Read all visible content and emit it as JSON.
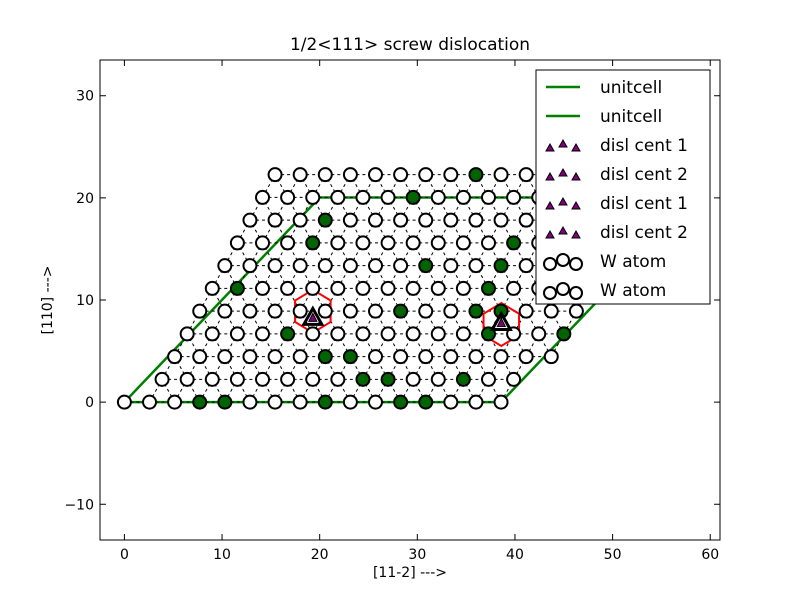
{
  "chart_data": {
    "type": "scatter",
    "title": "1/2<111> screw dislocation",
    "xlabel": "[11-2] --->",
    "ylabel": "[110] --->",
    "xlim": [
      -2.5,
      61
    ],
    "ylim": [
      -13.5,
      33.5
    ],
    "xticks": [
      0,
      10,
      20,
      30,
      40,
      50,
      60
    ],
    "yticks": [
      -10,
      0,
      10,
      20,
      30
    ],
    "grid": false,
    "legend_position": "top-right",
    "colors": {
      "unitcell": "#008000",
      "atom_edge": "#000000",
      "atom_filled": "#006400",
      "atom_open": "#ffffff",
      "disl_marker": "#800080",
      "core_ring": "#ff0000",
      "core_triangle": "#000000"
    },
    "lattice": {
      "a": 2.5717,
      "dy": 2.2272,
      "rows": [
        {
          "y_index": 0,
          "x_start_index": 0,
          "count": 16
        },
        {
          "y_index": 1,
          "x_start_index": 1.5,
          "count": 15
        },
        {
          "y_index": 2,
          "x_start_index": 2,
          "count": 16
        },
        {
          "y_index": 3,
          "x_start_index": 2.5,
          "count": 16
        },
        {
          "y_index": 4,
          "x_start_index": 3,
          "count": 16
        },
        {
          "y_index": 5,
          "x_start_index": 3.5,
          "count": 17
        },
        {
          "y_index": 6,
          "x_start_index": 4,
          "count": 17
        },
        {
          "y_index": 7,
          "x_start_index": 4.5,
          "count": 17
        },
        {
          "y_index": 8,
          "x_start_index": 5,
          "count": 17
        },
        {
          "y_index": 9,
          "x_start_index": 5.5,
          "count": 17
        },
        {
          "y_index": 10,
          "x_start_index": 6,
          "count": 17
        }
      ],
      "filled": [
        [
          0,
          3
        ],
        [
          0,
          4
        ],
        [
          0,
          8
        ],
        [
          0,
          11
        ],
        [
          0,
          12
        ],
        [
          1,
          8
        ],
        [
          1,
          9
        ],
        [
          1,
          12
        ],
        [
          2,
          6
        ],
        [
          2,
          7
        ],
        [
          3,
          4
        ],
        [
          3,
          12
        ],
        [
          3,
          15
        ],
        [
          3,
          17
        ],
        [
          4,
          8
        ],
        [
          4,
          11
        ],
        [
          4,
          12
        ],
        [
          4,
          16
        ],
        [
          5,
          1
        ],
        [
          5,
          11
        ],
        [
          6,
          8
        ],
        [
          6,
          11
        ],
        [
          7,
          3
        ],
        [
          7,
          11
        ],
        [
          7,
          15
        ],
        [
          8,
          3
        ],
        [
          9,
          6
        ],
        [
          10,
          8
        ],
        [
          10,
          11
        ]
      ]
    },
    "unitcell": [
      [
        0,
        0
      ],
      [
        38.58,
        0
      ],
      [
        58.58,
        20.04
      ],
      [
        20,
        20.04
      ],
      [
        0,
        0
      ]
    ],
    "dislocation_centers": [
      {
        "name": "disl cent 1",
        "x": 19.3,
        "y": 8.2
      },
      {
        "name": "disl cent 2",
        "x": 38.6,
        "y": 7.7
      }
    ],
    "core_rings": [
      {
        "cx": 19.3,
        "cy": 8.9,
        "r": 2.1
      },
      {
        "cx": 38.6,
        "cy": 7.6,
        "r": 2.1
      }
    ],
    "legend": [
      "unitcell",
      "unitcell",
      "disl cent 1",
      "disl cent 2",
      "disl cent 1",
      "disl cent 2",
      "W atom",
      "W atom"
    ]
  }
}
